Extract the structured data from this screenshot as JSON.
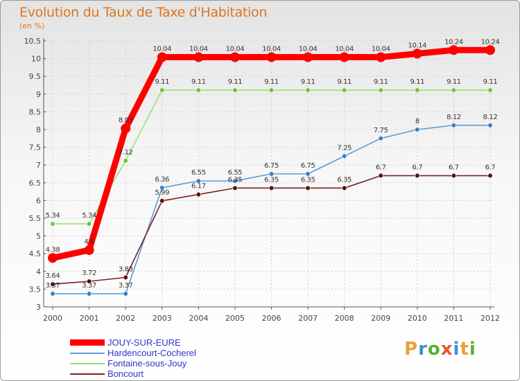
{
  "header": {
    "title": "Evolution du Taux de Taxe d'Habitation",
    "subtitle": "(en %)"
  },
  "brand": {
    "letters": [
      "P",
      "r",
      "o",
      "x",
      "i",
      "t",
      "i"
    ],
    "colors": [
      "#e8a13a",
      "#3b8fd6",
      "#5ab031",
      "#e35a2b",
      "#3b8fd6",
      "#e8a13a",
      "#5ab031"
    ]
  },
  "chart_data": {
    "type": "line",
    "title": "Evolution du Taux de Taxe d'Habitation",
    "ylabel": "(en %)",
    "xlabel": "",
    "x": [
      "2000",
      "2001",
      "2002",
      "2003",
      "2004",
      "2005",
      "2006",
      "2007",
      "2008",
      "2009",
      "2010",
      "2011",
      "2012"
    ],
    "ylim": [
      3,
      10.5
    ],
    "yticks": [
      "3",
      "3.5",
      "4",
      "4.5",
      "5",
      "5.5",
      "6",
      "6.5",
      "7",
      "7.5",
      "8",
      "8.5",
      "9",
      "9.5",
      "10",
      "10.5"
    ],
    "grid": true,
    "legend_position": "bottom-left",
    "series": [
      {
        "name": "JOUY-SUR-EURE",
        "color": "#ff0000",
        "marker_color": "#ff0000",
        "emphasis": true,
        "values": [
          4.38,
          4.6,
          8.03,
          10.04,
          10.04,
          10.04,
          10.04,
          10.04,
          10.04,
          10.04,
          10.14,
          10.24,
          10.24
        ],
        "labels": [
          "4.38",
          "4.6",
          "8.03",
          "10.04",
          "10.04",
          "10.04",
          "10.04",
          "10.04",
          "10.04",
          "10.04",
          "10.14",
          "10.24",
          "10.24"
        ]
      },
      {
        "name": "Hardencourt-Cocherel",
        "color": "#5b9bd5",
        "marker_color": "#3a7fc0",
        "emphasis": false,
        "values": [
          3.37,
          3.37,
          3.37,
          6.36,
          6.55,
          6.55,
          6.75,
          6.75,
          7.25,
          7.75,
          8,
          8.12,
          8.12
        ],
        "labels": [
          "3.37",
          "3.37",
          "3.37",
          "6.36",
          "6.55",
          "6.55",
          "6.75",
          "6.75",
          "7.25",
          "7.75",
          "8",
          "8.12",
          "8.12"
        ]
      },
      {
        "name": "Fontaine-sous-Jouy",
        "color": "#99e07a",
        "marker_color": "#6cc43a",
        "emphasis": false,
        "values": [
          5.34,
          5.34,
          7.12,
          9.11,
          9.11,
          9.11,
          9.11,
          9.11,
          9.11,
          9.11,
          9.11,
          9.11,
          9.11
        ],
        "labels": [
          "5.34",
          "5.34",
          "7.12",
          "9.11",
          "9.11",
          "9.11",
          "9.11",
          "9.11",
          "9.11",
          "9.11",
          "9.11",
          "9.11",
          "9.11"
        ]
      },
      {
        "name": "Boncourt",
        "color": "#7a2020",
        "marker_color": "#5a1010",
        "emphasis": false,
        "values": [
          3.64,
          3.72,
          3.83,
          5.99,
          6.17,
          6.35,
          6.35,
          6.35,
          6.35,
          6.7,
          6.7,
          6.7,
          6.7
        ],
        "labels": [
          "3.64",
          "3.72",
          "3.83",
          "5.99",
          "6.17",
          "6.35",
          "6.35",
          "6.35",
          "6.35",
          "6.7",
          "6.7",
          "6.7",
          "6.7"
        ]
      }
    ]
  }
}
